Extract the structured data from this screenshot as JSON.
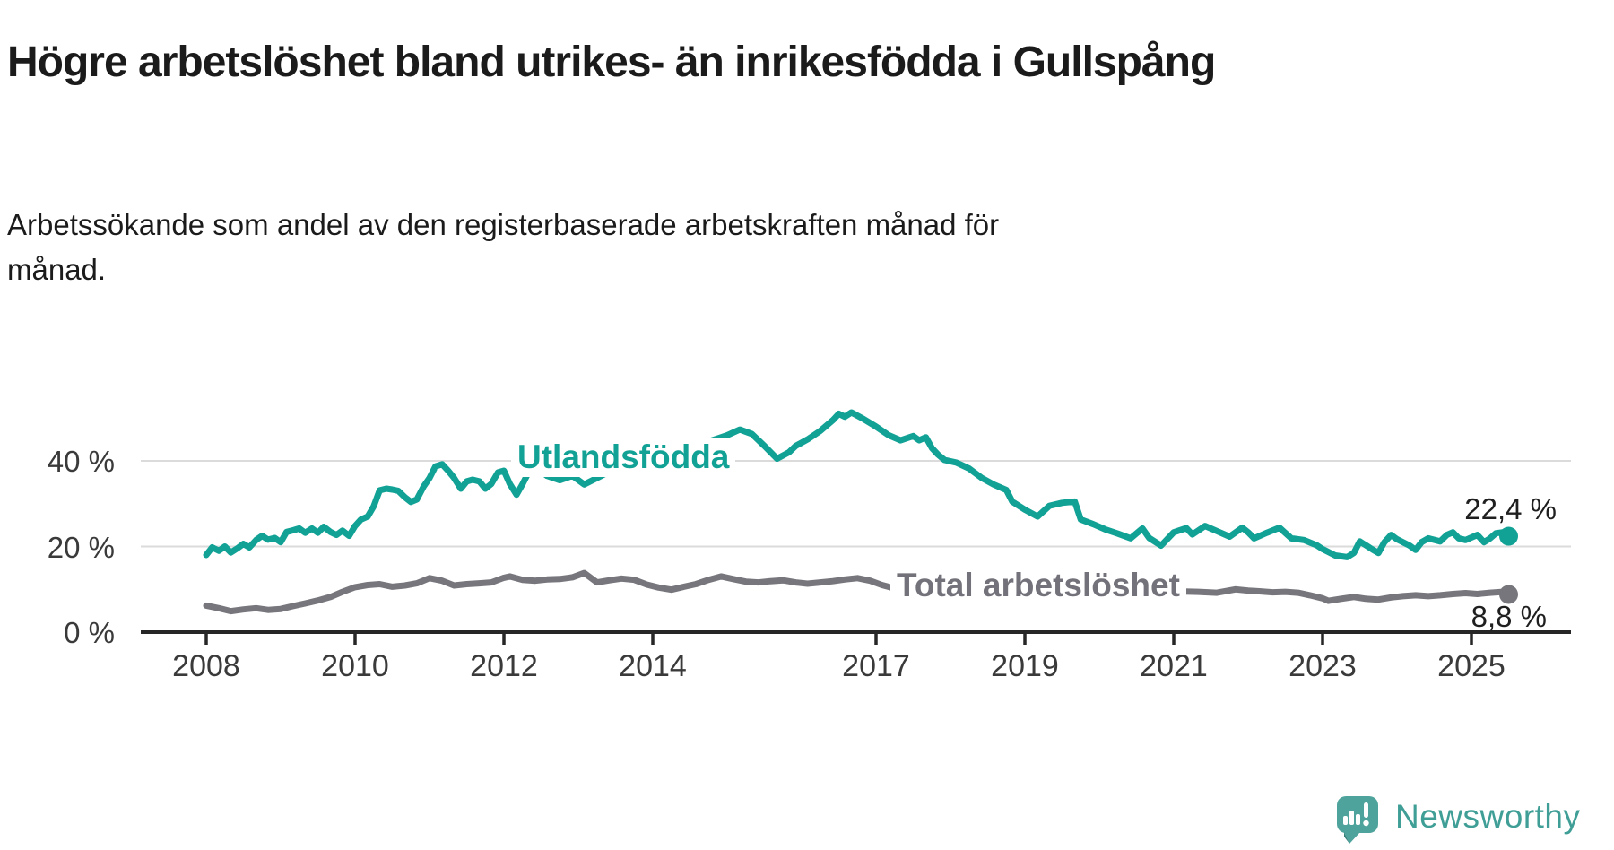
{
  "title": "Högre arbetslöshet bland utrikes- än inrikesfödda i Gullspång",
  "subtitle": {
    "line1": "Arbetssökande som andel av den registerbaserade arbetskraften månad för",
    "line2": "månad."
  },
  "logo": {
    "text": "Newsworthy",
    "icon": "speech-bubble-bar-chart-exclamation",
    "color": "#3f9e96"
  },
  "chart_data": {
    "type": "line",
    "title": "Högre arbetslöshet bland utrikes- än inrikesfödda i Gullspång",
    "xlabel": "",
    "ylabel": "Arbetssökande som andel av den registerbaserade arbetskraften",
    "xlim": [
      2007.1,
      2026.2
    ],
    "ylim": [
      0,
      55
    ],
    "grid": true,
    "legend_position": "inline-labels",
    "x_ticks": [
      2008,
      2010,
      2012,
      2014,
      2017,
      2019,
      2021,
      2023,
      2025
    ],
    "y_ticks": [
      {
        "value": 0,
        "label": "0 %"
      },
      {
        "value": 20,
        "label": "20 %"
      },
      {
        "value": 40,
        "label": "40 %"
      }
    ],
    "colors": {
      "grid": "#dbdbdb",
      "axis": "#262626",
      "teal": "#11a195",
      "gray": "#77767c"
    },
    "series": [
      {
        "name": "Utlandsfödda",
        "color": "#11a195",
        "end_label": "22,4 %",
        "end_value": 22.4,
        "points": [
          [
            2008.0,
            18.0
          ],
          [
            2008.08,
            19.8
          ],
          [
            2008.17,
            19.0
          ],
          [
            2008.25,
            20.0
          ],
          [
            2008.33,
            18.6
          ],
          [
            2008.42,
            19.6
          ],
          [
            2008.5,
            20.6
          ],
          [
            2008.58,
            19.8
          ],
          [
            2008.67,
            21.5
          ],
          [
            2008.75,
            22.5
          ],
          [
            2008.83,
            21.6
          ],
          [
            2008.92,
            22.0
          ],
          [
            2009.0,
            21.0
          ],
          [
            2009.08,
            23.4
          ],
          [
            2009.17,
            23.8
          ],
          [
            2009.25,
            24.2
          ],
          [
            2009.33,
            23.2
          ],
          [
            2009.42,
            24.2
          ],
          [
            2009.5,
            23.2
          ],
          [
            2009.58,
            24.6
          ],
          [
            2009.67,
            23.4
          ],
          [
            2009.75,
            22.7
          ],
          [
            2009.83,
            23.7
          ],
          [
            2009.92,
            22.5
          ],
          [
            2010.0,
            24.8
          ],
          [
            2010.08,
            26.3
          ],
          [
            2010.17,
            27.0
          ],
          [
            2010.25,
            29.4
          ],
          [
            2010.33,
            33.1
          ],
          [
            2010.42,
            33.5
          ],
          [
            2010.5,
            33.3
          ],
          [
            2010.58,
            33.0
          ],
          [
            2010.67,
            31.5
          ],
          [
            2010.75,
            30.4
          ],
          [
            2010.83,
            31.0
          ],
          [
            2010.92,
            34.0
          ],
          [
            2011.0,
            36.0
          ],
          [
            2011.08,
            38.7
          ],
          [
            2011.17,
            39.2
          ],
          [
            2011.25,
            37.7
          ],
          [
            2011.33,
            36.0
          ],
          [
            2011.42,
            33.5
          ],
          [
            2011.5,
            35.2
          ],
          [
            2011.58,
            35.6
          ],
          [
            2011.67,
            35.2
          ],
          [
            2011.75,
            33.5
          ],
          [
            2011.83,
            34.6
          ],
          [
            2011.92,
            37.3
          ],
          [
            2012.0,
            37.7
          ],
          [
            2012.08,
            34.6
          ],
          [
            2012.17,
            32.1
          ],
          [
            2012.25,
            34.6
          ],
          [
            2012.33,
            37.3
          ],
          [
            2012.42,
            38.7
          ],
          [
            2012.58,
            36.5
          ],
          [
            2012.75,
            35.5
          ],
          [
            2012.92,
            36.5
          ],
          [
            2013.08,
            34.5
          ],
          [
            2013.25,
            36.0
          ],
          [
            2013.42,
            37.5
          ],
          [
            2013.58,
            37.0
          ],
          [
            2013.75,
            38.5
          ],
          [
            2013.92,
            39.5
          ],
          [
            2014.08,
            41.0
          ],
          [
            2014.25,
            42.0
          ],
          [
            2014.42,
            41.5
          ],
          [
            2014.58,
            43.0
          ],
          [
            2014.75,
            44.5
          ],
          [
            2014.92,
            45.5
          ],
          [
            2015.0,
            46.0
          ],
          [
            2015.17,
            47.3
          ],
          [
            2015.33,
            46.3
          ],
          [
            2015.5,
            43.5
          ],
          [
            2015.67,
            40.5
          ],
          [
            2015.83,
            42.0
          ],
          [
            2015.92,
            43.5
          ],
          [
            2016.08,
            45.0
          ],
          [
            2016.25,
            47.0
          ],
          [
            2016.42,
            49.5
          ],
          [
            2016.5,
            51.0
          ],
          [
            2016.58,
            50.3
          ],
          [
            2016.67,
            51.3
          ],
          [
            2016.83,
            49.8
          ],
          [
            2017.0,
            48.0
          ],
          [
            2017.17,
            46.0
          ],
          [
            2017.33,
            44.8
          ],
          [
            2017.5,
            45.8
          ],
          [
            2017.58,
            44.8
          ],
          [
            2017.67,
            45.5
          ],
          [
            2017.75,
            43.0
          ],
          [
            2017.83,
            41.5
          ],
          [
            2017.92,
            40.2
          ],
          [
            2018.08,
            39.6
          ],
          [
            2018.25,
            38.2
          ],
          [
            2018.42,
            36.0
          ],
          [
            2018.58,
            34.5
          ],
          [
            2018.75,
            33.2
          ],
          [
            2018.83,
            30.5
          ],
          [
            2019.0,
            28.6
          ],
          [
            2019.17,
            27.0
          ],
          [
            2019.33,
            29.5
          ],
          [
            2019.5,
            30.2
          ],
          [
            2019.67,
            30.5
          ],
          [
            2019.75,
            26.3
          ],
          [
            2019.92,
            25.2
          ],
          [
            2020.08,
            24.0
          ],
          [
            2020.25,
            23.0
          ],
          [
            2020.42,
            21.9
          ],
          [
            2020.58,
            24.2
          ],
          [
            2020.67,
            22.0
          ],
          [
            2020.83,
            20.2
          ],
          [
            2021.0,
            23.3
          ],
          [
            2021.17,
            24.3
          ],
          [
            2021.25,
            22.8
          ],
          [
            2021.42,
            24.8
          ],
          [
            2021.58,
            23.6
          ],
          [
            2021.75,
            22.3
          ],
          [
            2021.92,
            24.4
          ],
          [
            2022.0,
            23.3
          ],
          [
            2022.08,
            21.9
          ],
          [
            2022.25,
            23.2
          ],
          [
            2022.42,
            24.4
          ],
          [
            2022.58,
            21.9
          ],
          [
            2022.75,
            21.5
          ],
          [
            2022.92,
            20.3
          ],
          [
            2023.0,
            19.4
          ],
          [
            2023.17,
            17.9
          ],
          [
            2023.33,
            17.5
          ],
          [
            2023.42,
            18.5
          ],
          [
            2023.5,
            21.2
          ],
          [
            2023.67,
            19.3
          ],
          [
            2023.75,
            18.5
          ],
          [
            2023.83,
            21.0
          ],
          [
            2023.92,
            22.7
          ],
          [
            2024.0,
            21.7
          ],
          [
            2024.17,
            20.2
          ],
          [
            2024.25,
            19.2
          ],
          [
            2024.33,
            21.0
          ],
          [
            2024.42,
            21.9
          ],
          [
            2024.58,
            21.2
          ],
          [
            2024.67,
            22.7
          ],
          [
            2024.75,
            23.3
          ],
          [
            2024.83,
            21.9
          ],
          [
            2024.92,
            21.5
          ],
          [
            2025.08,
            22.7
          ],
          [
            2025.17,
            21.0
          ],
          [
            2025.25,
            21.9
          ],
          [
            2025.33,
            23.1
          ],
          [
            2025.42,
            23.3
          ],
          [
            2025.5,
            22.4
          ]
        ]
      },
      {
        "name": "Total arbetslöshet",
        "color": "#77767c",
        "end_label": "8,8 %",
        "end_value": 8.8,
        "points": [
          [
            2008.0,
            6.2
          ],
          [
            2008.17,
            5.6
          ],
          [
            2008.33,
            4.9
          ],
          [
            2008.5,
            5.3
          ],
          [
            2008.67,
            5.6
          ],
          [
            2008.83,
            5.2
          ],
          [
            2009.0,
            5.4
          ],
          [
            2009.17,
            6.1
          ],
          [
            2009.33,
            6.7
          ],
          [
            2009.5,
            7.4
          ],
          [
            2009.67,
            8.2
          ],
          [
            2009.83,
            9.4
          ],
          [
            2010.0,
            10.5
          ],
          [
            2010.17,
            11.0
          ],
          [
            2010.33,
            11.2
          ],
          [
            2010.5,
            10.6
          ],
          [
            2010.67,
            10.9
          ],
          [
            2010.83,
            11.4
          ],
          [
            2011.0,
            12.6
          ],
          [
            2011.17,
            12.0
          ],
          [
            2011.33,
            10.9
          ],
          [
            2011.5,
            11.2
          ],
          [
            2011.67,
            11.4
          ],
          [
            2011.83,
            11.6
          ],
          [
            2012.0,
            12.7
          ],
          [
            2012.08,
            13.0
          ],
          [
            2012.25,
            12.2
          ],
          [
            2012.42,
            12.0
          ],
          [
            2012.58,
            12.3
          ],
          [
            2012.75,
            12.4
          ],
          [
            2012.92,
            12.8
          ],
          [
            2013.08,
            13.8
          ],
          [
            2013.25,
            11.6
          ],
          [
            2013.42,
            12.1
          ],
          [
            2013.58,
            12.5
          ],
          [
            2013.75,
            12.2
          ],
          [
            2013.92,
            11.1
          ],
          [
            2014.08,
            10.4
          ],
          [
            2014.25,
            9.9
          ],
          [
            2014.42,
            10.6
          ],
          [
            2014.58,
            11.2
          ],
          [
            2014.75,
            12.2
          ],
          [
            2014.92,
            13.0
          ],
          [
            2015.08,
            12.4
          ],
          [
            2015.25,
            11.8
          ],
          [
            2015.42,
            11.6
          ],
          [
            2015.58,
            11.9
          ],
          [
            2015.75,
            12.1
          ],
          [
            2015.92,
            11.6
          ],
          [
            2016.08,
            11.3
          ],
          [
            2016.25,
            11.6
          ],
          [
            2016.42,
            11.9
          ],
          [
            2016.58,
            12.3
          ],
          [
            2016.75,
            12.6
          ],
          [
            2016.92,
            12.0
          ],
          [
            2017.08,
            11.0
          ],
          [
            2017.25,
            10.2
          ],
          [
            2017.42,
            9.8
          ],
          [
            2017.58,
            10.4
          ],
          [
            2017.83,
            10.2
          ],
          [
            2018.08,
            9.9
          ],
          [
            2018.33,
            9.5
          ],
          [
            2018.58,
            9.3
          ],
          [
            2018.83,
            9.1
          ],
          [
            2019.08,
            9.0
          ],
          [
            2019.33,
            9.3
          ],
          [
            2019.58,
            9.1
          ],
          [
            2019.83,
            9.6
          ],
          [
            2020.08,
            9.9
          ],
          [
            2020.33,
            10.1
          ],
          [
            2020.58,
            9.9
          ],
          [
            2020.83,
            9.7
          ],
          [
            2021.08,
            9.5
          ],
          [
            2021.33,
            9.4
          ],
          [
            2021.58,
            9.2
          ],
          [
            2021.83,
            10.0
          ],
          [
            2022.0,
            9.7
          ],
          [
            2022.17,
            9.5
          ],
          [
            2022.33,
            9.3
          ],
          [
            2022.5,
            9.4
          ],
          [
            2022.67,
            9.2
          ],
          [
            2022.83,
            8.6
          ],
          [
            2023.0,
            7.9
          ],
          [
            2023.08,
            7.3
          ],
          [
            2023.25,
            7.8
          ],
          [
            2023.42,
            8.2
          ],
          [
            2023.58,
            7.8
          ],
          [
            2023.75,
            7.6
          ],
          [
            2023.92,
            8.1
          ],
          [
            2024.08,
            8.4
          ],
          [
            2024.25,
            8.6
          ],
          [
            2024.42,
            8.4
          ],
          [
            2024.58,
            8.6
          ],
          [
            2024.75,
            8.9
          ],
          [
            2024.92,
            9.1
          ],
          [
            2025.08,
            8.9
          ],
          [
            2025.25,
            9.2
          ],
          [
            2025.42,
            9.4
          ],
          [
            2025.5,
            8.8
          ]
        ]
      }
    ]
  }
}
